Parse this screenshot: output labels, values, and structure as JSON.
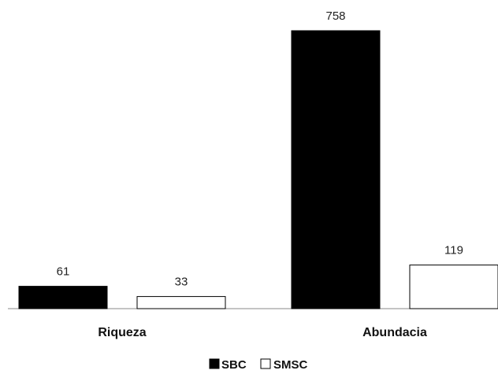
{
  "chart_data": {
    "type": "bar",
    "categories": [
      "Riqueza",
      "Abundacia"
    ],
    "series": [
      {
        "name": "SBC",
        "values": [
          61,
          758
        ],
        "color": "#000000"
      },
      {
        "name": "SMSC",
        "values": [
          33,
          119
        ],
        "color": "#ffffff"
      }
    ],
    "value_labels": [
      [
        "61",
        "758"
      ],
      [
        "33",
        "119"
      ]
    ],
    "ylim": [
      0,
      800
    ],
    "y_axis_visible": false,
    "grid": false,
    "legend": "bottom-center",
    "title": "",
    "xlabel": "",
    "ylabel": ""
  }
}
